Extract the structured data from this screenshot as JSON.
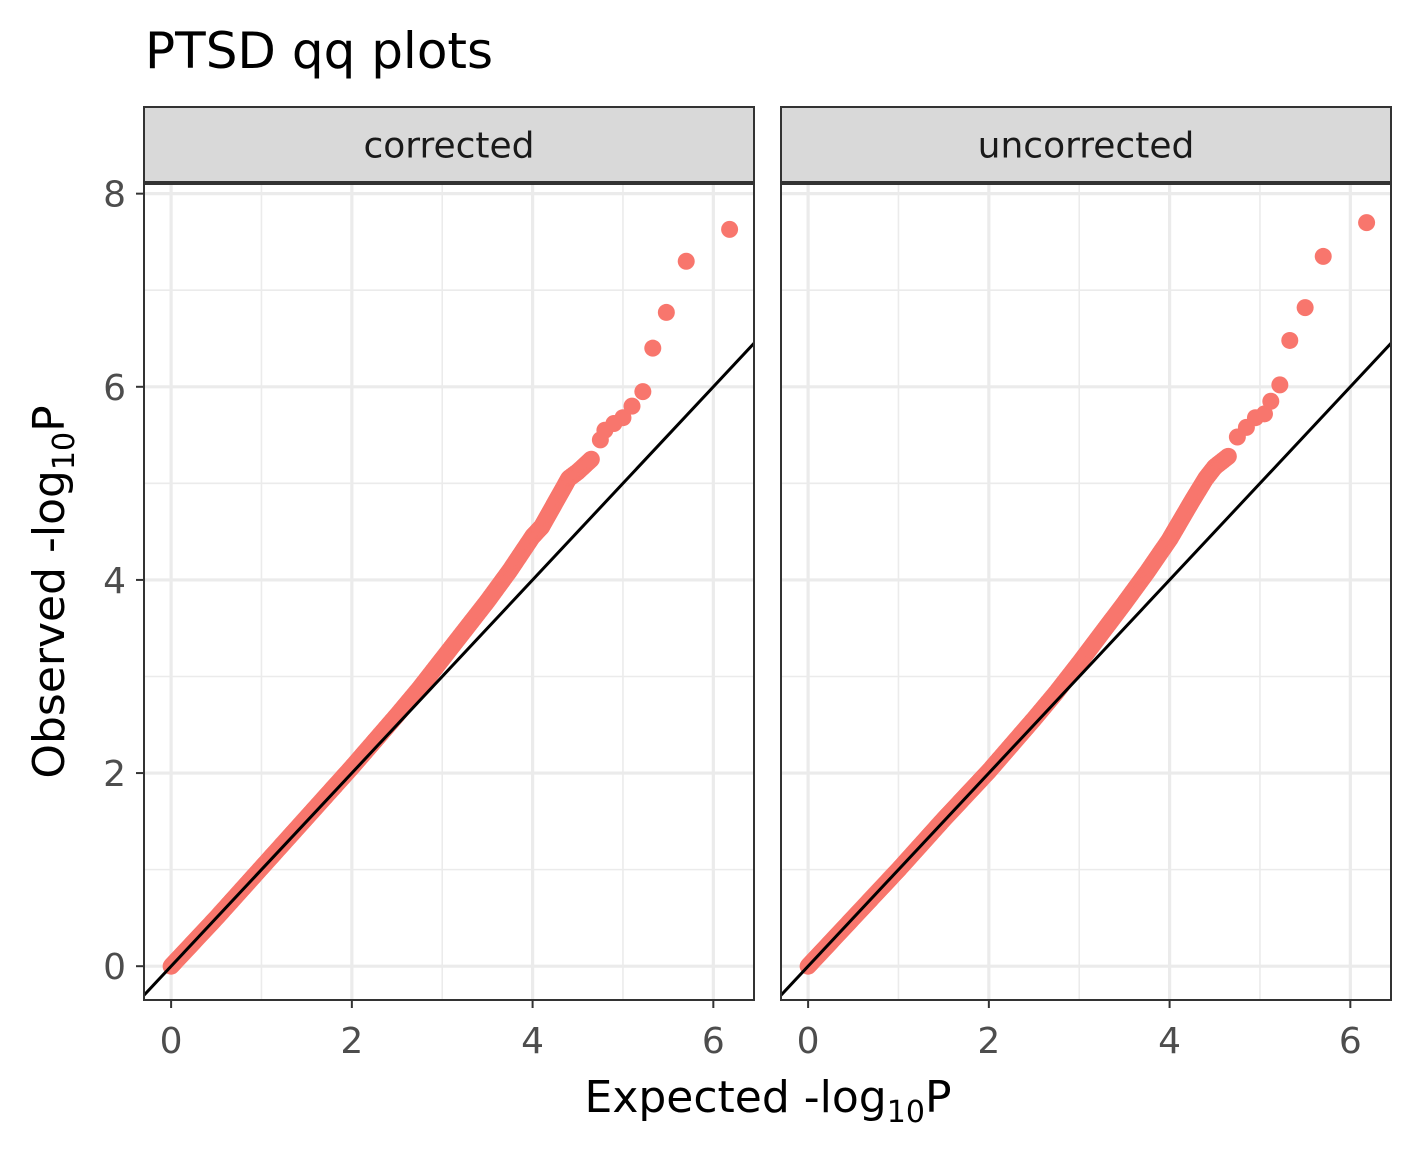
{
  "chart_data": {
    "type": "scatter",
    "title": "PTSD qq plots",
    "xlabel": {
      "prefix": "Expected -log",
      "sub": "10",
      "suffix": "P"
    },
    "ylabel": {
      "prefix": "Observed -log",
      "sub": "10",
      "suffix": "P"
    },
    "xlim": [
      -0.3,
      6.45
    ],
    "ylim": [
      -0.35,
      8.1
    ],
    "x_ticks": [
      0,
      2,
      4,
      6
    ],
    "y_ticks": [
      0,
      2,
      4,
      6,
      8
    ],
    "grid": true,
    "point_color": "#F8766D",
    "line_color": "#000000",
    "reference_line": {
      "slope": 1,
      "intercept": 0
    },
    "panels": [
      {
        "strip_label": "corrected",
        "points": [
          [
            0.0,
            0.0
          ],
          [
            0.25,
            0.25
          ],
          [
            0.5,
            0.5
          ],
          [
            0.75,
            0.76
          ],
          [
            1.0,
            1.02
          ],
          [
            1.25,
            1.28
          ],
          [
            1.5,
            1.54
          ],
          [
            1.75,
            1.8
          ],
          [
            2.0,
            2.06
          ],
          [
            2.25,
            2.33
          ],
          [
            2.5,
            2.6
          ],
          [
            2.75,
            2.88
          ],
          [
            3.0,
            3.18
          ],
          [
            3.25,
            3.48
          ],
          [
            3.5,
            3.78
          ],
          [
            3.75,
            4.1
          ],
          [
            4.0,
            4.45
          ],
          [
            4.1,
            4.55
          ],
          [
            4.25,
            4.8
          ],
          [
            4.4,
            5.05
          ],
          [
            4.5,
            5.12
          ],
          [
            4.65,
            5.25
          ],
          [
            4.75,
            5.45
          ],
          [
            4.8,
            5.55
          ],
          [
            4.9,
            5.62
          ],
          [
            5.0,
            5.68
          ],
          [
            5.1,
            5.8
          ],
          [
            5.22,
            5.95
          ],
          [
            5.33,
            6.4
          ],
          [
            5.48,
            6.77
          ],
          [
            5.7,
            7.3
          ],
          [
            6.18,
            7.63
          ]
        ]
      },
      {
        "strip_label": "uncorrected",
        "points": [
          [
            0.0,
            0.0
          ],
          [
            0.25,
            0.25
          ],
          [
            0.5,
            0.5
          ],
          [
            0.75,
            0.75
          ],
          [
            1.0,
            1.0
          ],
          [
            1.25,
            1.26
          ],
          [
            1.5,
            1.52
          ],
          [
            1.75,
            1.77
          ],
          [
            2.0,
            2.02
          ],
          [
            2.25,
            2.29
          ],
          [
            2.5,
            2.56
          ],
          [
            2.75,
            2.84
          ],
          [
            3.0,
            3.14
          ],
          [
            3.25,
            3.45
          ],
          [
            3.5,
            3.76
          ],
          [
            3.75,
            4.08
          ],
          [
            4.0,
            4.42
          ],
          [
            4.1,
            4.58
          ],
          [
            4.25,
            4.82
          ],
          [
            4.4,
            5.05
          ],
          [
            4.5,
            5.17
          ],
          [
            4.65,
            5.28
          ],
          [
            4.75,
            5.48
          ],
          [
            4.85,
            5.58
          ],
          [
            4.95,
            5.68
          ],
          [
            5.05,
            5.72
          ],
          [
            5.12,
            5.85
          ],
          [
            5.22,
            6.02
          ],
          [
            5.33,
            6.48
          ],
          [
            5.5,
            6.82
          ],
          [
            5.7,
            7.35
          ],
          [
            6.18,
            7.7
          ]
        ]
      }
    ]
  }
}
